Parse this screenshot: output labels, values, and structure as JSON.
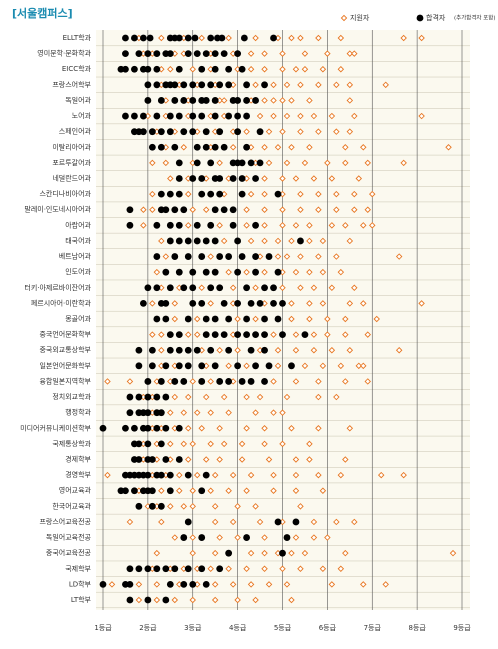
{
  "chart_data": {
    "type": "dot",
    "title": "[서울캠퍼스]",
    "categories": [
      "ELLT학과",
      "영미문학·문화학과",
      "EICC학과",
      "프랑스어학부",
      "독일어과",
      "노어과",
      "스페인어과",
      "이탈리아어과",
      "포르투갈어과",
      "네덜란드어과",
      "스칸디나비아어과",
      "말레이·인도네시아어과",
      "아랍어과",
      "태국어과",
      "베트남어과",
      "인도어과",
      "터키·아제르바이잔어과",
      "페르시아어·이란학과",
      "몽골어과",
      "중국언어문화학부",
      "중국외교통상학부",
      "일본언어문화학부",
      "융합일본지역학부",
      "정치외교학과",
      "행정학과",
      "미디어커뮤니케이션학부",
      "국제통상학과",
      "경제학부",
      "경영학부",
      "영어교육과",
      "한국어교육과",
      "프랑스어교육전공",
      "독일어교육전공",
      "중국어교육전공",
      "국제학부",
      "LD학부",
      "LT학부"
    ],
    "series": [
      {
        "name": "지원자",
        "color": "#e87722",
        "marker": "diamond",
        "values": [
          [
            1.8,
            2.3,
            2.8,
            3.2,
            3.8,
            4.4,
            4.9,
            5.2,
            5.4,
            5.8,
            6.3,
            7.7,
            8.1
          ],
          [
            1.9,
            2.1,
            2.6,
            2.8,
            3.4,
            3.9,
            4.3,
            4.6,
            5.0,
            5.5,
            6.0,
            6.5,
            6.6
          ],
          [
            2.3,
            2.5,
            3.0,
            3.4,
            4.0,
            4.3,
            4.6,
            5.0,
            5.3,
            5.5,
            5.9,
            6.3
          ],
          [
            2.3,
            2.7,
            3.1,
            3.5,
            3.9,
            4.4,
            4.8,
            5.1,
            5.4,
            5.8,
            6.2,
            6.5,
            7.3
          ],
          [
            2.4,
            2.9,
            3.6,
            3.7,
            4.3,
            4.6,
            4.8,
            5.0,
            5.2,
            5.6,
            6.5
          ],
          [
            2.0,
            2.4,
            2.9,
            3.4,
            3.7,
            4.5,
            4.8,
            5.1,
            5.4,
            5.7,
            6.1,
            6.6,
            8.1
          ],
          [
            2.2,
            2.6,
            3.1,
            3.5,
            3.9,
            4.2,
            4.7,
            5.0,
            5.4,
            5.8,
            6.2,
            6.5
          ],
          [
            2.4,
            2.8,
            3.4,
            3.9,
            4.3,
            4.6,
            4.9,
            5.2,
            5.6,
            6.4,
            6.8,
            8.7
          ],
          [
            2.1,
            2.4,
            3.0,
            3.6,
            4.4,
            4.7,
            5.1,
            5.5,
            6.0,
            6.4,
            6.9,
            7.7
          ],
          [
            2.5,
            2.9,
            3.3,
            3.8,
            4.2,
            4.6,
            5.0,
            5.3,
            5.7,
            6.1,
            6.7
          ],
          [
            2.1,
            2.9,
            3.7,
            4.3,
            4.6,
            5.0,
            5.4,
            5.8,
            6.2,
            6.6,
            7.0
          ],
          [
            1.9,
            2.1,
            3.0,
            3.3,
            4.2,
            4.6,
            5.0,
            5.4,
            5.8,
            6.2,
            6.6,
            6.9
          ],
          [
            1.9,
            2.9,
            3.6,
            4.2,
            4.6,
            5.0,
            5.3,
            5.6,
            6.1,
            6.4,
            6.8,
            7.0
          ],
          [
            2.3,
            3.7,
            4.3,
            4.6,
            4.9,
            5.2,
            5.6,
            5.9,
            6.5
          ],
          [
            2.4,
            3.4,
            4.5,
            4.9,
            5.1,
            5.4,
            5.8,
            6.2,
            7.6
          ],
          [
            2.2,
            3.8,
            4.2,
            4.6,
            5.0,
            5.3,
            5.6,
            5.9,
            6.3
          ],
          [
            2.3,
            2.7,
            3.2,
            3.9,
            4.4,
            5.0,
            5.4,
            5.7,
            6.1,
            6.6
          ],
          [
            2.1,
            2.6,
            3.4,
            3.9,
            4.6,
            5.2,
            5.6,
            5.9,
            6.5,
            6.8,
            8.1
          ],
          [
            2.6,
            3.1,
            4.0,
            4.4,
            5.2,
            5.6,
            6.0,
            6.4,
            7.1
          ],
          [
            2.1,
            2.3,
            2.9,
            3.1,
            3.9,
            4.8,
            5.3,
            5.7,
            6.0,
            6.4,
            6.9
          ],
          [
            2.3,
            3.2,
            3.6,
            4.0,
            4.5,
            4.9,
            5.3,
            5.7,
            6.1,
            6.5,
            7.6
          ],
          [
            2.3,
            2.6,
            3.3,
            3.8,
            4.2,
            4.9,
            5.5,
            5.9,
            6.3,
            6.7,
            6.8
          ],
          [
            1.1,
            1.6,
            2.2,
            2.5,
            3.0,
            3.4,
            3.9,
            4.8,
            5.3,
            5.8,
            6.4,
            6.9
          ],
          [
            1.9,
            2.1,
            2.6,
            2.9,
            3.3,
            3.7,
            4.2,
            4.5,
            5.1,
            5.8,
            6.2
          ],
          [
            2.1,
            2.5,
            2.8,
            3.1,
            3.4,
            3.8,
            4.4,
            4.8,
            5.0
          ],
          [
            2.1,
            2.3,
            2.6,
            2.9,
            3.2,
            3.6,
            4.2,
            4.6,
            5.2,
            5.8,
            6.5
          ],
          [
            1.9,
            2.2,
            2.5,
            2.8,
            3.0,
            3.4,
            3.7,
            4.1,
            4.6,
            5.0,
            5.6
          ],
          [
            1.9,
            2.2,
            2.5,
            2.9,
            3.3,
            3.6,
            4.1,
            4.7,
            5.3,
            5.6,
            6.4
          ],
          [
            1.1,
            2.1,
            2.4,
            2.7,
            3.1,
            3.5,
            3.9,
            4.3,
            4.8,
            5.3,
            5.8,
            6.3,
            7.2,
            7.7
          ],
          [
            1.8,
            2.3,
            2.7,
            3.0,
            3.4,
            3.8,
            4.2,
            4.8,
            5.3,
            5.9
          ],
          [
            2.0,
            2.2,
            2.5,
            2.8,
            3.0,
            3.5,
            4.0,
            4.4,
            5.4
          ],
          [
            1.6,
            2.3,
            3.5,
            3.9,
            4.5,
            5.0,
            5.7,
            6.2,
            6.6
          ],
          [
            2.6,
            3.0,
            3.6,
            4.0,
            4.6,
            5.3,
            5.7,
            6.0
          ],
          [
            2.2,
            3.0,
            3.5,
            4.3,
            4.6,
            4.9,
            5.2,
            5.5,
            6.4,
            8.8
          ],
          [
            2.1,
            2.5,
            2.8,
            3.1,
            3.4,
            3.8,
            4.2,
            4.6,
            5.0,
            5.4,
            5.9,
            6.3
          ],
          [
            1.2,
            1.8,
            2.2,
            2.7,
            3.1,
            3.5,
            3.9,
            4.3,
            4.7,
            5.1,
            6.1,
            6.8,
            7.3
          ],
          [
            1.8,
            2.2,
            2.6,
            3.0,
            3.5,
            4.0,
            4.4,
            5.2
          ]
        ]
      },
      {
        "name": "합격자",
        "note": "(추가합격자 포함)",
        "color": "#000000",
        "marker": "circle",
        "values": [
          [
            1.5,
            1.7,
            1.9,
            2.05,
            2.5,
            2.6,
            2.7,
            2.9,
            3.05,
            3.4,
            3.55,
            3.65,
            4.15,
            4.8
          ],
          [
            1.5,
            1.8,
            2.0,
            2.2,
            2.4,
            2.5,
            2.9,
            3.1,
            3.3,
            3.5,
            3.7,
            4.0
          ],
          [
            1.4,
            1.5,
            1.7,
            1.9,
            2.0,
            2.2,
            2.7,
            3.2,
            3.5,
            3.8,
            4.1
          ],
          [
            2.0,
            2.2,
            2.4,
            2.5,
            2.6,
            2.8,
            3.0,
            3.2,
            3.4,
            3.6,
            3.8,
            4.2,
            4.6
          ],
          [
            2.0,
            2.3,
            2.6,
            2.8,
            3.0,
            3.2,
            3.3,
            3.5,
            3.9,
            4.0,
            4.2,
            4.4
          ],
          [
            1.5,
            1.7,
            1.9,
            2.2,
            2.5,
            2.7,
            3.0,
            3.2,
            3.5,
            3.8,
            4.0,
            4.2
          ],
          [
            1.7,
            1.8,
            1.9,
            2.1,
            2.3,
            2.5,
            2.8,
            3.0,
            3.3,
            3.6,
            4.0,
            4.5
          ],
          [
            2.1,
            2.3,
            2.6,
            3.1,
            3.3,
            3.5,
            3.7,
            4.2
          ],
          [
            2.7,
            3.1,
            3.4,
            3.9,
            4.0,
            4.1,
            4.3,
            4.5
          ],
          [
            2.7,
            3.0,
            3.2,
            3.5,
            3.6,
            3.9,
            4.1,
            4.4
          ],
          [
            2.3,
            2.5,
            2.7,
            3.2,
            3.4,
            3.6,
            4.1,
            4.9
          ],
          [
            1.6,
            2.3,
            2.4,
            2.6,
            2.8,
            3.5,
            3.7,
            3.9
          ],
          [
            1.6,
            2.2,
            2.5,
            2.7,
            3.1,
            3.4,
            3.9,
            4.4
          ],
          [
            2.5,
            2.7,
            2.9,
            3.1,
            3.3,
            3.5,
            4.0,
            5.4
          ],
          [
            2.2,
            2.6,
            2.9,
            3.2,
            3.6,
            3.8,
            4.1,
            4.4,
            4.7
          ],
          [
            2.4,
            2.7,
            3.0,
            3.3,
            3.5,
            4.0,
            4.4,
            4.9
          ],
          [
            2.0,
            2.2,
            2.5,
            2.8,
            3.0,
            3.4,
            3.6,
            4.2,
            4.6,
            4.8
          ],
          [
            1.9,
            2.3,
            2.4,
            3.0,
            3.2,
            3.7,
            4.0,
            4.3,
            4.5,
            4.8,
            5.0
          ],
          [
            2.2,
            2.4,
            2.9,
            3.3,
            3.5,
            3.8,
            4.2,
            4.6,
            4.9
          ],
          [
            2.5,
            2.7,
            3.3,
            3.5,
            3.7,
            4.0,
            4.2,
            4.4,
            4.6,
            5.0,
            5.5
          ],
          [
            1.8,
            2.1,
            2.5,
            2.7,
            2.9,
            3.1,
            3.4,
            3.8,
            4.3,
            4.6
          ],
          [
            1.8,
            2.1,
            2.4,
            2.7,
            2.9,
            3.2,
            3.5,
            4.0,
            4.4,
            4.7,
            5.2
          ],
          [
            2.0,
            2.3,
            2.6,
            2.8,
            3.2,
            3.6,
            3.8,
            4.1,
            4.3,
            4.6
          ],
          [
            1.6,
            1.8,
            2.0,
            2.2,
            2.4
          ],
          [
            1.6,
            1.8,
            1.9,
            2.0,
            2.2,
            2.3
          ],
          [
            1.0,
            1.5,
            1.7,
            1.9,
            2.0,
            2.2,
            2.4,
            2.7
          ],
          [
            1.7,
            1.8,
            2.0,
            2.3
          ],
          [
            1.7,
            1.8,
            2.0,
            2.1,
            2.4,
            2.7
          ],
          [
            1.5,
            1.6,
            1.7,
            1.8,
            1.9,
            2.0,
            2.2,
            2.3,
            2.5,
            2.9,
            3.3
          ],
          [
            1.4,
            1.5,
            1.7,
            1.9,
            2.0,
            2.1,
            2.5,
            3.2
          ],
          [
            1.8,
            2.1,
            2.3
          ],
          [
            2.9,
            4.9,
            5.3
          ],
          [
            2.8,
            3.2,
            4.2,
            5.1
          ],
          [
            3.8,
            5.0
          ],
          [
            1.6,
            1.8,
            2.0,
            2.2,
            2.4,
            2.6,
            2.9,
            3.2,
            3.6
          ],
          [
            1.0,
            1.5,
            1.6,
            2.5,
            2.8,
            3.0,
            3.3
          ],
          [
            1.6,
            2.0,
            2.4
          ]
        ]
      }
    ],
    "xlim": [
      1,
      9
    ],
    "xticks": [
      {
        "value": 1,
        "label": "1등급"
      },
      {
        "value": 2,
        "label": "2등급"
      },
      {
        "value": 3,
        "label": "3등급"
      },
      {
        "value": 4,
        "label": "4등급"
      },
      {
        "value": 5,
        "label": "5등급"
      },
      {
        "value": 6,
        "label": "6등급"
      },
      {
        "value": 7,
        "label": "7등급"
      },
      {
        "value": 8,
        "label": "8등급"
      },
      {
        "value": 9,
        "label": "9등급"
      }
    ],
    "grid": true,
    "legend": "top-right"
  }
}
